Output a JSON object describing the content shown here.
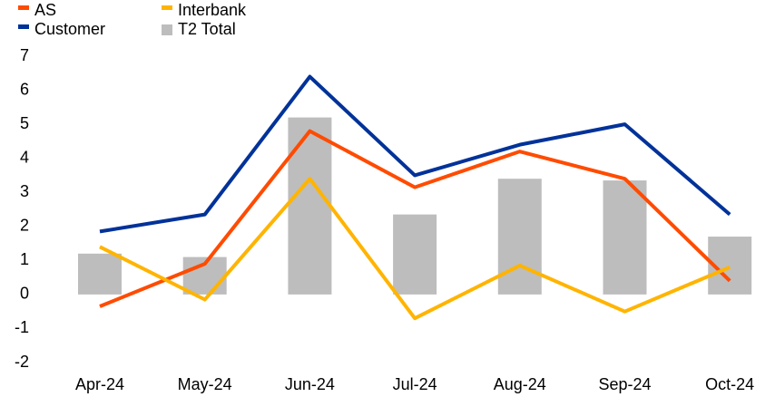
{
  "chart_data": {
    "type": "combo",
    "categories": [
      "Apr-24",
      "May-24",
      "Jun-24",
      "Jul-24",
      "Aug-24",
      "Sep-24",
      "Oct-24"
    ],
    "series": [
      {
        "name": "AS",
        "type": "line",
        "color": "#ff4b00",
        "values": [
          -0.35,
          0.9,
          4.8,
          3.15,
          4.2,
          3.4,
          0.4
        ]
      },
      {
        "name": "Customer",
        "type": "line",
        "color": "#003299",
        "values": [
          1.85,
          2.35,
          6.4,
          3.5,
          4.4,
          5.0,
          2.35
        ]
      },
      {
        "name": "Interbank",
        "type": "line",
        "color": "#ffb400",
        "values": [
          1.4,
          -0.15,
          3.4,
          -0.7,
          0.85,
          -0.5,
          0.8
        ]
      },
      {
        "name": "T2 Total",
        "type": "bar",
        "color": "#bdbdbd",
        "values": [
          1.2,
          1.1,
          5.2,
          2.35,
          3.4,
          3.35,
          1.7
        ]
      }
    ],
    "ylim": [
      -2,
      7
    ],
    "yticks": [
      -2,
      -1,
      0,
      1,
      2,
      3,
      4,
      5,
      6,
      7
    ],
    "grid": false
  }
}
